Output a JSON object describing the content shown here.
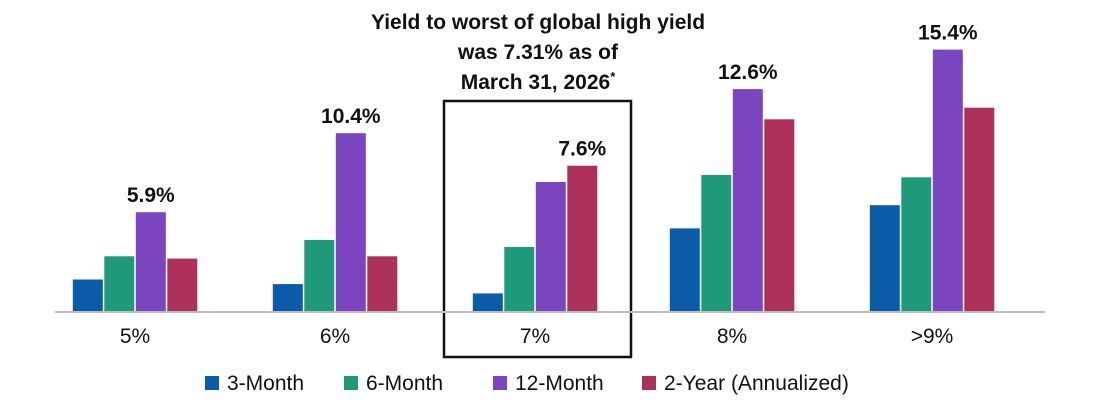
{
  "chart_data": {
    "type": "bar",
    "categories": [
      "5%",
      "6%",
      "7%",
      "8%",
      ">9%"
    ],
    "series": [
      {
        "name": "3-Month",
        "color": "#0a5ca8",
        "values": [
          1.4,
          1.2,
          0.8,
          3.6,
          4.6
        ]
      },
      {
        "name": "6-Month",
        "color": "#1f9a78",
        "values": [
          2.4,
          3.1,
          2.8,
          5.9,
          5.8
        ]
      },
      {
        "name": "12-Month",
        "color": "#7a45bf",
        "values": [
          4.3,
          7.7,
          5.6,
          9.6,
          11.3
        ]
      },
      {
        "name": "2-Year (Annualized)",
        "color": "#ad3058",
        "values": [
          2.3,
          2.4,
          6.3,
          8.3,
          8.8
        ]
      }
    ],
    "data_labels": [
      "5.9%",
      "10.4%",
      "7.6%",
      "12.6%",
      "15.4%"
    ],
    "highlight_category": "7%",
    "annotation": {
      "lines": [
        "Yield to worst of global high yield",
        "was 7.31% as of",
        "March 31, 2026"
      ],
      "mark": "*"
    },
    "ylim": [
      0,
      11.5
    ],
    "grid": false,
    "legend_position": "bottom"
  }
}
